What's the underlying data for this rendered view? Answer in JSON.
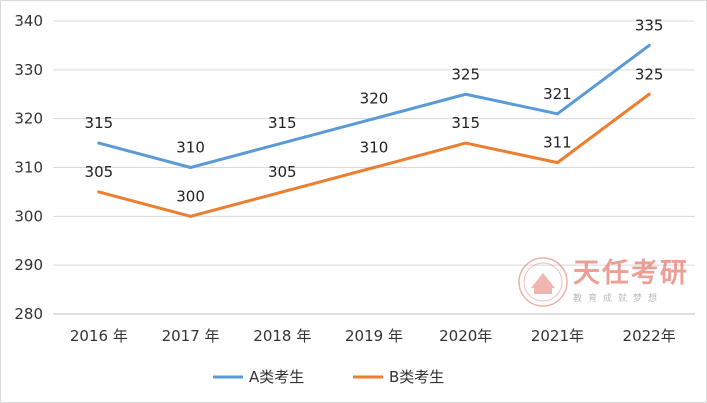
{
  "chart_data": {
    "type": "line",
    "categories": [
      "2016 年",
      "2017 年",
      "2018 年",
      "2019 年",
      "2020年",
      "2021年",
      "2022年"
    ],
    "series": [
      {
        "name": "A类考生",
        "color": "#5b9bd5",
        "values": [
          315,
          310,
          315,
          320,
          325,
          321,
          335
        ]
      },
      {
        "name": "B类考生",
        "color": "#ed7d31",
        "values": [
          305,
          300,
          305,
          310,
          315,
          311,
          325
        ]
      }
    ],
    "ylim": [
      280,
      340
    ],
    "yticks": [
      280,
      290,
      300,
      310,
      320,
      330,
      340
    ],
    "grid": true,
    "legend": "bottom"
  },
  "watermark": {
    "title": "天任考研",
    "subtitle": "教育成就梦想"
  }
}
